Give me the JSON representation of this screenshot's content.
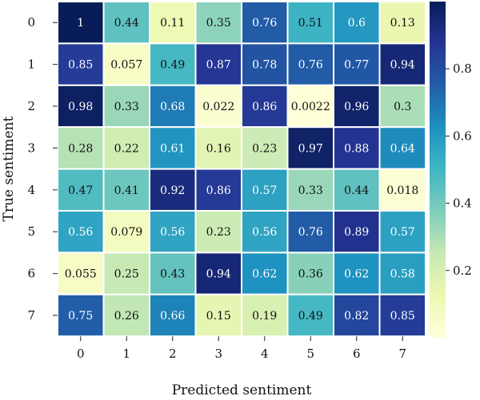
{
  "chart_data": {
    "type": "heatmap",
    "title": "",
    "xlabel": "Predicted sentiment",
    "ylabel": "True sentiment",
    "x_categories": [
      "0",
      "1",
      "2",
      "3",
      "4",
      "5",
      "6",
      "7"
    ],
    "y_categories": [
      "0",
      "1",
      "2",
      "3",
      "4",
      "5",
      "6",
      "7"
    ],
    "values": [
      [
        1,
        0.44,
        0.11,
        0.35,
        0.76,
        0.51,
        0.6,
        0.13
      ],
      [
        0.85,
        0.057,
        0.49,
        0.87,
        0.78,
        0.76,
        0.77,
        0.94
      ],
      [
        0.98,
        0.33,
        0.68,
        0.022,
        0.86,
        0.0022,
        0.96,
        0.3
      ],
      [
        0.28,
        0.22,
        0.61,
        0.16,
        0.23,
        0.97,
        0.88,
        0.64
      ],
      [
        0.47,
        0.41,
        0.92,
        0.86,
        0.57,
        0.33,
        0.44,
        0.018
      ],
      [
        0.56,
        0.079,
        0.56,
        0.23,
        0.56,
        0.76,
        0.89,
        0.57
      ],
      [
        0.055,
        0.25,
        0.43,
        0.94,
        0.62,
        0.36,
        0.62,
        0.58
      ],
      [
        0.75,
        0.26,
        0.66,
        0.15,
        0.19,
        0.49,
        0.82,
        0.85
      ]
    ],
    "colormap": "YlGnBu",
    "colorbar": {
      "range": [
        0,
        1
      ],
      "ticks": [
        0.2,
        0.4,
        0.6,
        0.8
      ],
      "tick_labels": [
        "0.2",
        "0.4",
        "0.6",
        "0.8"
      ]
    },
    "cell_border_color": "#ffffff",
    "legend": "none",
    "grid": false
  }
}
